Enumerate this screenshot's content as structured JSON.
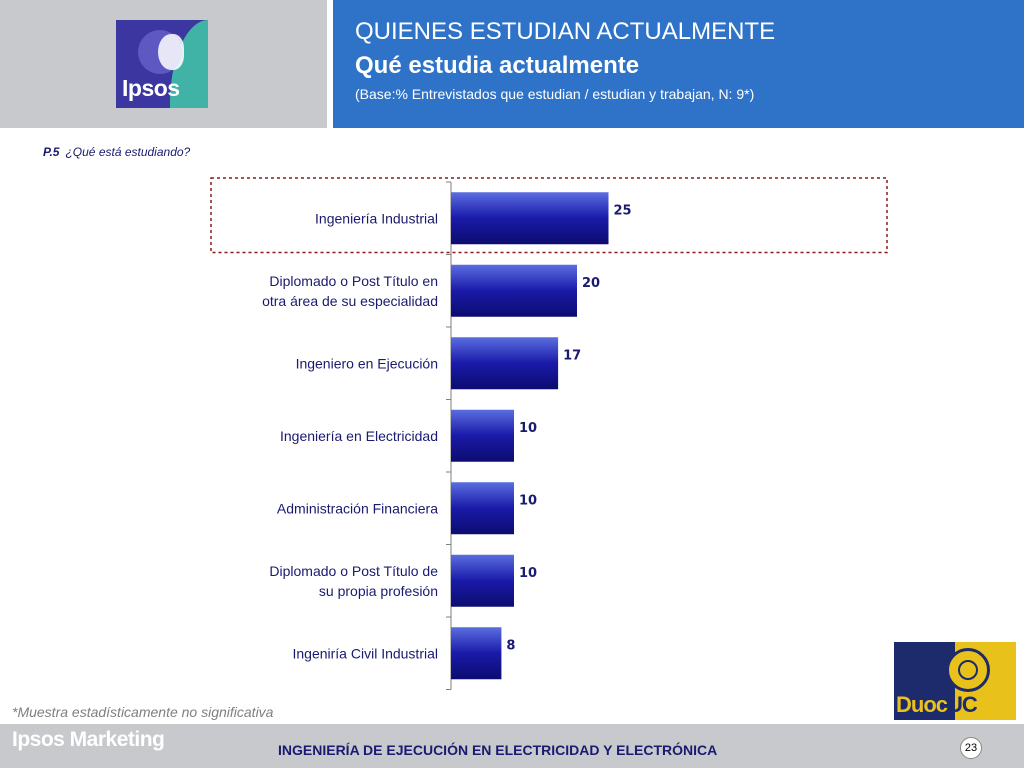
{
  "header": {
    "logo_text": "Ipsos",
    "title_line1": "QUIENES ESTUDIAN ACTUALMENTE",
    "title_line2": "Qué estudia actualmente",
    "base_note": "(Base:% Entrevistados que  estudian / estudian y trabajan, N: 9*)"
  },
  "question": {
    "number": "P.5",
    "text": "¿Qué está estudiando?"
  },
  "chart_data": {
    "type": "bar",
    "orientation": "horizontal",
    "categories": [
      [
        "Ingeniería Industrial"
      ],
      [
        "Diplomado o Post Título en",
        "otra área de su especialidad"
      ],
      [
        "Ingeniero en Ejecución"
      ],
      [
        "Ingeniería en Electricidad"
      ],
      [
        "Administración Financiera"
      ],
      [
        "Diplomado o Post Título de",
        "su propia profesión"
      ],
      [
        "Ingeniría Civil Industrial"
      ]
    ],
    "values": [
      25,
      20,
      17,
      10,
      10,
      10,
      8
    ],
    "xlim": [
      0,
      100
    ],
    "highlighted_index": 0,
    "bar_color": "#1a1aa0",
    "label_color": "#1a1a70",
    "highlight_border_color": "#8b1a1a"
  },
  "footnote": "*Muestra estadísticamente no significativa",
  "footer": {
    "brand": "Ipsos Marketing",
    "title": "INGENIERÍA DE EJECUCIÓN EN ELECTRICIDAD Y ELECTRÓNICA",
    "page_number": "23"
  },
  "partner_logo": {
    "text_part1": "Duoc",
    "text_part2": "UC"
  }
}
